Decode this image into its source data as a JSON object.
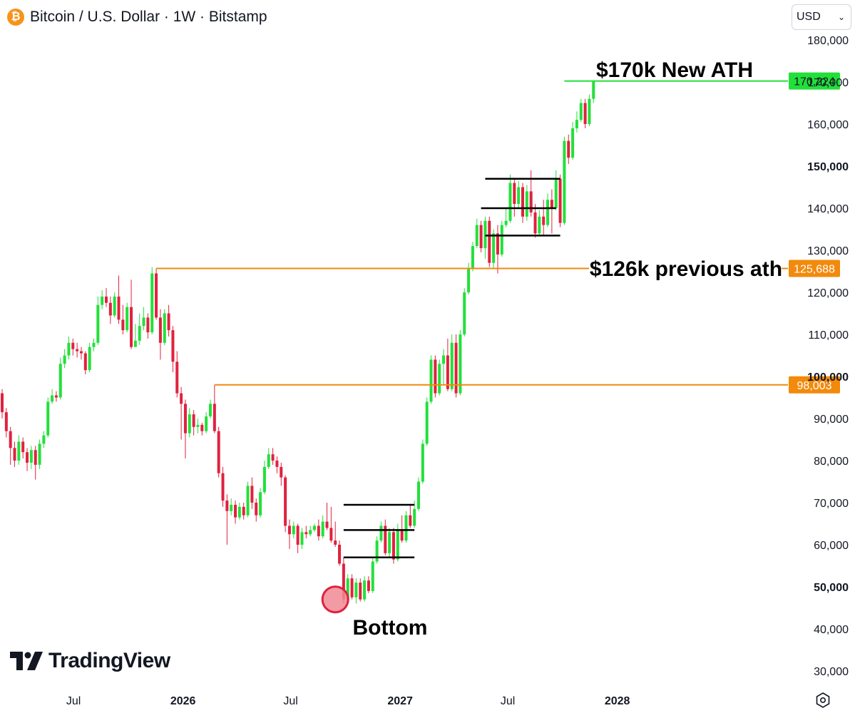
{
  "header": {
    "symbol_title": "Bitcoin / U.S. Dollar · 1W · Bitstamp",
    "logo_glyph": "₿",
    "logo_icon": "bitcoin-icon"
  },
  "currency_select": {
    "value": "USD",
    "icon": "chevron-down-icon"
  },
  "branding": {
    "logo_text": "TradingView",
    "logo_icon": "tradingview-icon"
  },
  "settings_icon": "gear-icon",
  "colors": {
    "up": "#22E03A",
    "down": "#E0213F",
    "orange": "#F28A0C",
    "green_line": "#22E03A",
    "axis_text": "#131722",
    "bottom_marker": "#F08A94"
  },
  "chart_data": {
    "type": "candlestick",
    "y_axis": {
      "ylim": [
        25000,
        185000
      ],
      "ticks": [
        {
          "value": 180000,
          "label": "180,000",
          "bold": false
        },
        {
          "value": 170000,
          "label": "170,000",
          "bold": false
        },
        {
          "value": 160000,
          "label": "160,000",
          "bold": false
        },
        {
          "value": 150000,
          "label": "150,000",
          "bold": true
        },
        {
          "value": 140000,
          "label": "140,000",
          "bold": false
        },
        {
          "value": 130000,
          "label": "130,000",
          "bold": false
        },
        {
          "value": 120000,
          "label": "120,000",
          "bold": false
        },
        {
          "value": 110000,
          "label": "110,000",
          "bold": false
        },
        {
          "value": 100000,
          "label": "100,000",
          "bold": true
        },
        {
          "value": 90000,
          "label": "90,000",
          "bold": false
        },
        {
          "value": 80000,
          "label": "80,000",
          "bold": false
        },
        {
          "value": 70000,
          "label": "70,000",
          "bold": false
        },
        {
          "value": 60000,
          "label": "60,000",
          "bold": false
        },
        {
          "value": 50000,
          "label": "50,000",
          "bold": true
        },
        {
          "value": 40000,
          "label": "40,000",
          "bold": false
        },
        {
          "value": 30000,
          "label": "30,000",
          "bold": false
        }
      ]
    },
    "x_axis": {
      "range": [
        "2025-03-03",
        "2027-12-27"
      ],
      "ticks": [
        {
          "date": "2025-07-01",
          "label": "Jul",
          "bold": false
        },
        {
          "date": "2026-01-01",
          "label": "2026",
          "bold": true
        },
        {
          "date": "2026-07-01",
          "label": "Jul",
          "bold": false
        },
        {
          "date": "2027-01-01",
          "label": "2027",
          "bold": true
        },
        {
          "date": "2027-07-01",
          "label": "Jul",
          "bold": false
        },
        {
          "date": "2028-01-01",
          "label": "2028",
          "bold": true
        }
      ]
    },
    "first_week": "2025-03-03",
    "candles": [
      [
        96000,
        91500,
        97000,
        90000
      ],
      [
        91500,
        87000,
        92500,
        85500
      ],
      [
        87000,
        83000,
        88000,
        79000
      ],
      [
        83000,
        80000,
        84500,
        78500
      ],
      [
        80000,
        84500,
        86000,
        79000
      ],
      [
        84500,
        82000,
        85500,
        80500
      ],
      [
        82000,
        79500,
        83000,
        77500
      ],
      [
        79500,
        82500,
        83500,
        78000
      ],
      [
        82500,
        79000,
        83500,
        75500
      ],
      [
        79000,
        84000,
        85000,
        78000
      ],
      [
        84000,
        86000,
        87000,
        83000
      ],
      [
        86000,
        94000,
        95000,
        85500
      ],
      [
        94000,
        95500,
        97000,
        93500
      ],
      [
        95500,
        95000,
        96500,
        94000
      ],
      [
        95000,
        103000,
        104500,
        94500
      ],
      [
        103000,
        105000,
        106500,
        102000
      ],
      [
        105000,
        108000,
        109500,
        104000
      ],
      [
        108000,
        106500,
        109000,
        105000
      ],
      [
        106500,
        106000,
        108000,
        104500
      ],
      [
        106000,
        105500,
        107000,
        104000
      ],
      [
        105500,
        101500,
        106000,
        100500
      ],
      [
        101500,
        107000,
        108000,
        101000
      ],
      [
        107000,
        108000,
        109000,
        106000
      ],
      [
        108000,
        117000,
        119000,
        107500
      ],
      [
        117000,
        119000,
        120500,
        116000
      ],
      [
        119000,
        117500,
        121000,
        116500
      ],
      [
        117500,
        114500,
        119000,
        112500
      ],
      [
        114500,
        119000,
        120000,
        114000
      ],
      [
        119000,
        113500,
        124000,
        112500
      ],
      [
        113500,
        111000,
        117000,
        110000
      ],
      [
        111000,
        116500,
        117500,
        110500
      ],
      [
        116500,
        107000,
        123000,
        106500
      ],
      [
        107000,
        108500,
        112500,
        107000
      ],
      [
        108500,
        112000,
        115000,
        107500
      ],
      [
        112000,
        114000,
        116500,
        111000
      ],
      [
        114000,
        110500,
        115000,
        109000
      ],
      [
        110500,
        124500,
        126000,
        110000
      ],
      [
        124500,
        114000,
        125688,
        113500
      ],
      [
        114000,
        108000,
        116000,
        104000
      ],
      [
        108000,
        115000,
        116000,
        107500
      ],
      [
        115000,
        111000,
        117000,
        109500
      ],
      [
        111000,
        103500,
        112000,
        101000
      ],
      [
        103500,
        96000,
        106000,
        95000
      ],
      [
        96000,
        93500,
        97500,
        85000
      ],
      [
        93500,
        86500,
        94500,
        80500
      ],
      [
        86500,
        91000,
        92500,
        85500
      ],
      [
        91000,
        88000,
        92000,
        86000
      ],
      [
        88000,
        88500,
        90000,
        86500
      ],
      [
        88500,
        87000,
        89000,
        86000
      ],
      [
        87000,
        90500,
        91500,
        86500
      ],
      [
        90500,
        93500,
        94500,
        90000
      ],
      [
        93500,
        87000,
        98003,
        86500
      ],
      [
        87000,
        77000,
        88000,
        76000
      ],
      [
        77000,
        70500,
        78500,
        69000
      ],
      [
        70500,
        68000,
        72000,
        60000
      ],
      [
        68000,
        69500,
        71000,
        67000
      ],
      [
        69500,
        66500,
        70500,
        65000
      ],
      [
        66500,
        69000,
        70000,
        66000
      ],
      [
        69000,
        67000,
        70000,
        66000
      ],
      [
        67000,
        74000,
        75000,
        66500
      ],
      [
        74000,
        70000,
        76000,
        68500
      ],
      [
        70000,
        67000,
        71000,
        65500
      ],
      [
        67000,
        72500,
        73500,
        66500
      ],
      [
        72500,
        78500,
        80000,
        72000
      ],
      [
        78500,
        81500,
        83000,
        78000
      ],
      [
        81500,
        80000,
        83000,
        79000
      ],
      [
        80000,
        78500,
        81000,
        77000
      ],
      [
        78500,
        76000,
        79500,
        74000
      ],
      [
        76000,
        64500,
        76500,
        63000
      ],
      [
        64500,
        62500,
        66000,
        59000
      ],
      [
        62500,
        64500,
        65500,
        61500
      ],
      [
        64500,
        60000,
        65000,
        58000
      ],
      [
        60000,
        63000,
        64000,
        59000
      ],
      [
        63000,
        62500,
        64500,
        61500
      ],
      [
        62500,
        63500,
        64500,
        62000
      ],
      [
        63500,
        64500,
        65000,
        63000
      ],
      [
        64500,
        62000,
        66000,
        61000
      ],
      [
        62000,
        65500,
        67000,
        61500
      ],
      [
        65500,
        64000,
        70000,
        63500
      ],
      [
        64000,
        61000,
        69000,
        60500
      ],
      [
        61000,
        60000,
        65500,
        59500
      ],
      [
        60000,
        55500,
        61000,
        55000
      ],
      [
        55500,
        47000,
        57000,
        46000
      ],
      [
        47000,
        52000,
        53000,
        46500
      ],
      [
        52000,
        47500,
        53000,
        47000
      ],
      [
        47500,
        51000,
        52000,
        46000
      ],
      [
        51000,
        47000,
        52000,
        46500
      ],
      [
        47000,
        51500,
        52500,
        46500
      ],
      [
        51500,
        49000,
        52500,
        48500
      ],
      [
        49000,
        56000,
        57000,
        48500
      ],
      [
        56000,
        61000,
        62000,
        55500
      ],
      [
        61000,
        64500,
        65500,
        60500
      ],
      [
        64500,
        58000,
        66000,
        57500
      ],
      [
        58000,
        63000,
        64000,
        57000
      ],
      [
        63000,
        56500,
        64000,
        55500
      ],
      [
        56500,
        63500,
        65000,
        56000
      ],
      [
        63500,
        61000,
        67000,
        60500
      ],
      [
        61000,
        67000,
        68000,
        60500
      ],
      [
        67000,
        64500,
        69500,
        64000
      ],
      [
        64500,
        68500,
        70500,
        64000
      ],
      [
        68500,
        75000,
        76000,
        68000
      ],
      [
        75000,
        84000,
        85000,
        74500
      ],
      [
        84000,
        94000,
        95000,
        83500
      ],
      [
        94000,
        104000,
        105000,
        93500
      ],
      [
        104000,
        96000,
        105000,
        95000
      ],
      [
        96000,
        103000,
        104000,
        95500
      ],
      [
        103000,
        105000,
        106500,
        98000
      ],
      [
        105000,
        97000,
        109000,
        96500
      ],
      [
        97000,
        108000,
        110000,
        96500
      ],
      [
        108000,
        96000,
        110000,
        95000
      ],
      [
        96000,
        110000,
        111000,
        95500
      ],
      [
        110000,
        120000,
        121000,
        109500
      ],
      [
        120000,
        125500,
        127000,
        119500
      ],
      [
        125500,
        131000,
        132000,
        125000
      ],
      [
        131000,
        136000,
        137500,
        130500
      ],
      [
        136000,
        130500,
        137000,
        129500
      ],
      [
        130500,
        137000,
        138000,
        128000
      ],
      [
        137000,
        127000,
        138000,
        126000
      ],
      [
        127000,
        134000,
        135000,
        125500
      ],
      [
        134000,
        129000,
        136000,
        124500
      ],
      [
        129000,
        136000,
        137000,
        128500
      ],
      [
        136000,
        137000,
        140000,
        135500
      ],
      [
        137000,
        146000,
        148000,
        136500
      ],
      [
        146000,
        141000,
        147000,
        138000
      ],
      [
        141000,
        145000,
        146500,
        140000
      ],
      [
        145000,
        138000,
        146000,
        136500
      ],
      [
        138000,
        144000,
        145500,
        137000
      ],
      [
        144000,
        139000,
        149000,
        138000
      ],
      [
        139000,
        134000,
        141000,
        133000
      ],
      [
        134000,
        138000,
        139500,
        133500
      ],
      [
        138000,
        136000,
        142000,
        133500
      ],
      [
        136000,
        142000,
        143500,
        135500
      ],
      [
        142000,
        140000,
        144500,
        134000
      ],
      [
        140000,
        147000,
        149000,
        139500
      ],
      [
        147000,
        136500,
        148000,
        135500
      ],
      [
        136500,
        156000,
        157000,
        136000
      ],
      [
        156000,
        152000,
        157500,
        150500
      ],
      [
        152000,
        159000,
        160500,
        151500
      ],
      [
        159000,
        161000,
        163000,
        158000
      ],
      [
        161000,
        165000,
        166000,
        160500
      ],
      [
        165000,
        160000,
        166000,
        159000
      ],
      [
        160000,
        166000,
        167000,
        159500
      ],
      [
        166000,
        170224,
        170224,
        165000
      ]
    ],
    "horizontal_lines": [
      {
        "name": "new-ath-line",
        "price": 170224,
        "from_week": 135,
        "color": "green",
        "price_label": "170,224"
      },
      {
        "name": "previous-ath-line",
        "price": 125688,
        "from_week": 37,
        "color": "orange",
        "price_label": "125,688"
      },
      {
        "name": "support-line-98k",
        "price": 98003,
        "from_week": 51,
        "color": "orange",
        "price_label": "98,003"
      }
    ],
    "range_lines": [
      {
        "price": 69500,
        "from_week": 82,
        "to_week": 99
      },
      {
        "price": 63500,
        "from_week": 82,
        "to_week": 99
      },
      {
        "price": 57000,
        "from_week": 82,
        "to_week": 99
      },
      {
        "price": 147000,
        "from_week": 116,
        "to_week": 134
      },
      {
        "price": 140000,
        "from_week": 115,
        "to_week": 133
      },
      {
        "price": 133500,
        "from_week": 116,
        "to_week": 134
      }
    ],
    "annotations": [
      {
        "name": "new-ath-annotation",
        "text": "$170k New ATH"
      },
      {
        "name": "previous-ath-annotation",
        "text": "$126k previous ath"
      },
      {
        "name": "bottom-annotation",
        "text": "Bottom"
      }
    ],
    "bottom_marker": {
      "week": 80,
      "price": 47000
    }
  }
}
